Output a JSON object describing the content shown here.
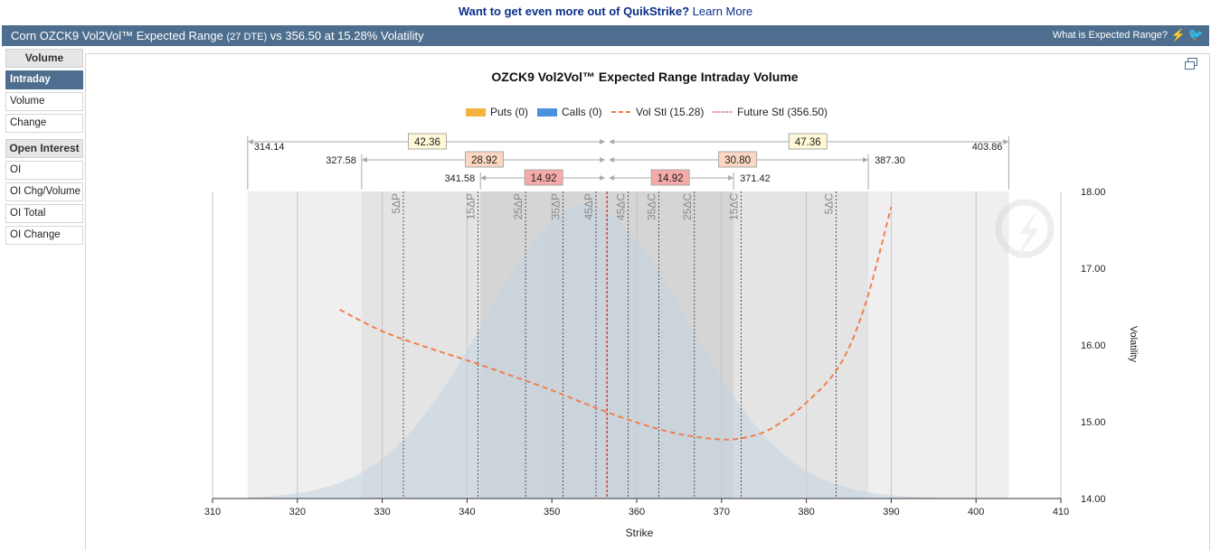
{
  "promo": {
    "text": "Want to get even more out of QuikStrike?",
    "link": "Learn More"
  },
  "header": {
    "title_main": "Corn OZCK9 Vol2Vol™ Expected Range",
    "title_dte": "(27 DTE)",
    "title_rest": "vs 356.50 at 15.28% Volatility",
    "help": "What is Expected Range?",
    "icons": [
      "lightning-icon",
      "twitter-icon"
    ]
  },
  "sidebar": {
    "volume_header": "Volume",
    "volume_items": [
      {
        "label": "Intraday",
        "active": true
      },
      {
        "label": "Volume",
        "active": false
      },
      {
        "label": "Change",
        "active": false
      }
    ],
    "oi_header": "Open Interest",
    "oi_items": [
      {
        "label": "OI"
      },
      {
        "label": "OI Chg/Volume"
      },
      {
        "label": "OI Total"
      },
      {
        "label": "OI Change"
      }
    ]
  },
  "chart_data": {
    "type": "line",
    "title": "OZCK9 Vol2Vol™ Expected Range Intraday Volume",
    "xlabel": "Strike",
    "ylabel": "Volatility",
    "xlim": [
      310,
      410
    ],
    "ylim": [
      14,
      18
    ],
    "x_ticks": [
      "310",
      "320",
      "330",
      "340",
      "350",
      "360",
      "370",
      "380",
      "390",
      "400",
      "410"
    ],
    "y_ticks": [
      "14.00",
      "15.00",
      "16.00",
      "17.00",
      "18.00"
    ],
    "legend": [
      {
        "label": "Puts (0)",
        "color": "#f4b23e",
        "kind": "box"
      },
      {
        "label": "Calls (0)",
        "color": "#4a8fe0",
        "kind": "box"
      },
      {
        "label": "Vol Stl (15.28)",
        "color": "#f07f4f",
        "kind": "dash"
      },
      {
        "label": "Future Stl (356.50)",
        "color": "#cc2222",
        "kind": "dot"
      }
    ],
    "legend_placement": "top",
    "grid": true,
    "vol_curve": {
      "x": [
        325,
        330,
        335,
        340,
        345,
        350,
        355,
        360,
        365,
        370,
        373,
        376,
        380,
        384,
        387,
        390
      ],
      "y": [
        16.46,
        16.18,
        15.98,
        15.8,
        15.61,
        15.41,
        15.19,
        14.99,
        14.84,
        14.77,
        14.8,
        14.92,
        15.25,
        15.75,
        16.55,
        17.8
      ]
    },
    "future_settle": 356.5,
    "distribution_peak": 354,
    "ranges": [
      {
        "low": 314.14,
        "high": 403.86,
        "down": "42.36",
        "up": "47.36",
        "low_label": "314.14",
        "high_label": "403.86",
        "color": "#fff8d6"
      },
      {
        "low": 327.58,
        "high": 387.3,
        "down": "28.92",
        "up": "30.80",
        "low_label": "327.58",
        "high_label": "387.30",
        "color": "#fbd7c2"
      },
      {
        "low": 341.58,
        "high": 371.42,
        "down": "14.92",
        "up": "14.92",
        "low_label": "341.58",
        "high_label": "371.42",
        "color": "#f6aaa8"
      }
    ],
    "delta_lines": [
      {
        "label": "5ΔP",
        "x": 332.5
      },
      {
        "label": "15ΔP",
        "x": 341.3
      },
      {
        "label": "25ΔP",
        "x": 346.9
      },
      {
        "label": "35ΔP",
        "x": 351.3
      },
      {
        "label": "45ΔP",
        "x": 355.2
      },
      {
        "label": "45ΔC",
        "x": 359.0
      },
      {
        "label": "35ΔC",
        "x": 362.6
      },
      {
        "label": "25ΔC",
        "x": 366.8
      },
      {
        "label": "15ΔC",
        "x": 372.3
      },
      {
        "label": "5ΔC",
        "x": 383.5
      }
    ]
  }
}
